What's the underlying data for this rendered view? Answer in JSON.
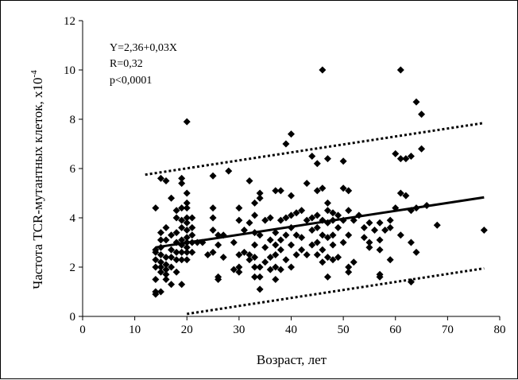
{
  "chart_data": {
    "type": "scatter",
    "title": "",
    "xlabel": "Возраст, лет",
    "ylabel_main": "Частота TCR-мутантных клеток, х10",
    "ylabel_exp": "-4",
    "xlim": [
      0,
      80
    ],
    "ylim": [
      0,
      12
    ],
    "xticks": [
      "0",
      "10",
      "20",
      "30",
      "40",
      "50",
      "60",
      "70",
      "80"
    ],
    "yticks": [
      "0",
      "2",
      "4",
      "6",
      "8",
      "10",
      "12"
    ],
    "grid": false,
    "legend": "none",
    "annotation": {
      "equation": "Y=2,36+0,03X",
      "r": "R=0,32",
      "p": "p<0,0001"
    },
    "regression": {
      "x": [
        14,
        77
      ],
      "y": [
        2.8,
        4.83
      ]
    },
    "upper_bound": {
      "x": [
        12,
        77
      ],
      "y": [
        5.75,
        7.85
      ]
    },
    "lower_bound": {
      "x": [
        20,
        77
      ],
      "y": [
        0.1,
        1.95
      ]
    },
    "marker": "diamond",
    "points": [
      [
        14,
        0.9
      ],
      [
        14,
        1.0
      ],
      [
        14,
        1.5
      ],
      [
        14,
        2.0
      ],
      [
        14,
        2.3
      ],
      [
        14,
        2.6
      ],
      [
        14,
        2.7
      ],
      [
        14,
        4.4
      ],
      [
        15,
        1.0
      ],
      [
        15,
        1.8
      ],
      [
        15,
        2.0
      ],
      [
        15,
        2.2
      ],
      [
        15,
        2.5
      ],
      [
        15,
        2.8
      ],
      [
        15,
        3.1
      ],
      [
        15,
        3.4
      ],
      [
        15,
        5.6
      ],
      [
        16,
        1.5
      ],
      [
        16,
        1.7
      ],
      [
        16,
        1.9
      ],
      [
        16,
        2.1
      ],
      [
        16,
        2.4
      ],
      [
        16,
        3.1
      ],
      [
        16,
        3.6
      ],
      [
        16,
        5.5
      ],
      [
        17,
        1.3
      ],
      [
        17,
        2.0
      ],
      [
        17,
        2.4
      ],
      [
        17,
        2.7
      ],
      [
        17,
        3.3
      ],
      [
        17,
        4.8
      ],
      [
        18,
        1.8
      ],
      [
        18,
        2.3
      ],
      [
        18,
        2.6
      ],
      [
        18,
        3.0
      ],
      [
        18,
        3.4
      ],
      [
        18,
        4.0
      ],
      [
        18,
        4.3
      ],
      [
        19,
        1.3
      ],
      [
        19,
        2.3
      ],
      [
        19,
        2.6
      ],
      [
        19,
        2.9
      ],
      [
        19,
        3.1
      ],
      [
        19,
        3.6
      ],
      [
        19,
        3.9
      ],
      [
        19,
        4.4
      ],
      [
        19,
        5.4
      ],
      [
        19,
        5.6
      ],
      [
        20,
        2.3
      ],
      [
        20,
        2.6
      ],
      [
        20,
        2.8
      ],
      [
        20,
        3.0
      ],
      [
        20,
        3.2
      ],
      [
        20,
        3.5
      ],
      [
        20,
        3.8
      ],
      [
        20,
        4.0
      ],
      [
        20,
        4.4
      ],
      [
        20,
        4.6
      ],
      [
        20,
        5.0
      ],
      [
        20,
        7.9
      ],
      [
        21,
        2.6
      ],
      [
        21,
        3.0
      ],
      [
        21,
        3.3
      ],
      [
        21,
        3.6
      ],
      [
        21,
        4.0
      ],
      [
        22,
        3.0
      ],
      [
        23,
        3.0
      ],
      [
        24,
        2.5
      ],
      [
        25,
        2.6
      ],
      [
        25,
        3.5
      ],
      [
        25,
        4.0
      ],
      [
        25,
        4.4
      ],
      [
        25,
        5.7
      ],
      [
        26,
        1.5
      ],
      [
        26,
        1.6
      ],
      [
        26,
        2.9
      ],
      [
        26,
        3.3
      ],
      [
        27,
        2.4
      ],
      [
        27,
        3.3
      ],
      [
        28,
        5.9
      ],
      [
        29,
        1.9
      ],
      [
        29,
        3.0
      ],
      [
        30,
        1.8
      ],
      [
        30,
        2.0
      ],
      [
        30,
        2.5
      ],
      [
        30,
        3.9
      ],
      [
        30,
        4.4
      ],
      [
        31,
        2.6
      ],
      [
        31,
        3.5
      ],
      [
        32,
        2.3
      ],
      [
        32,
        2.5
      ],
      [
        32,
        3.8
      ],
      [
        32,
        5.5
      ],
      [
        33,
        1.6
      ],
      [
        33,
        2.0
      ],
      [
        33,
        2.4
      ],
      [
        33,
        2.9
      ],
      [
        33,
        3.4
      ],
      [
        33,
        4.1
      ],
      [
        33,
        4.6
      ],
      [
        34,
        1.1
      ],
      [
        34,
        1.6
      ],
      [
        34,
        2.0
      ],
      [
        34,
        3.3
      ],
      [
        34,
        4.8
      ],
      [
        34,
        5.0
      ],
      [
        35,
        2.2
      ],
      [
        35,
        2.8
      ],
      [
        35,
        3.9
      ],
      [
        36,
        1.9
      ],
      [
        36,
        2.4
      ],
      [
        36,
        3.1
      ],
      [
        36,
        4.0
      ],
      [
        37,
        1.5
      ],
      [
        37,
        2.0
      ],
      [
        37,
        2.5
      ],
      [
        37,
        2.9
      ],
      [
        37,
        3.4
      ],
      [
        37,
        5.1
      ],
      [
        38,
        1.9
      ],
      [
        38,
        2.7
      ],
      [
        38,
        3.1
      ],
      [
        38,
        3.9
      ],
      [
        38,
        5.1
      ],
      [
        39,
        2.3
      ],
      [
        39,
        3.3
      ],
      [
        39,
        4.0
      ],
      [
        39,
        7.0
      ],
      [
        40,
        2.0
      ],
      [
        40,
        2.9
      ],
      [
        40,
        3.6
      ],
      [
        40,
        4.1
      ],
      [
        40,
        4.9
      ],
      [
        40,
        7.4
      ],
      [
        41,
        2.5
      ],
      [
        41,
        3.3
      ],
      [
        41,
        4.2
      ],
      [
        42,
        2.7
      ],
      [
        42,
        3.2
      ],
      [
        42,
        4.3
      ],
      [
        43,
        2.5
      ],
      [
        43,
        3.9
      ],
      [
        43,
        5.4
      ],
      [
        44,
        2.9
      ],
      [
        44,
        3.5
      ],
      [
        44,
        4.0
      ],
      [
        44,
        6.5
      ],
      [
        45,
        2.5
      ],
      [
        45,
        3.0
      ],
      [
        45,
        3.6
      ],
      [
        45,
        4.1
      ],
      [
        45,
        5.1
      ],
      [
        45,
        6.2
      ],
      [
        46,
        2.2
      ],
      [
        46,
        2.7
      ],
      [
        46,
        3.3
      ],
      [
        46,
        3.9
      ],
      [
        46,
        5.2
      ],
      [
        46,
        10.0
      ],
      [
        47,
        1.6
      ],
      [
        47,
        2.4
      ],
      [
        47,
        3.2
      ],
      [
        47,
        3.8
      ],
      [
        47,
        4.3
      ],
      [
        47,
        4.6
      ],
      [
        47,
        6.4
      ],
      [
        48,
        2.3
      ],
      [
        48,
        2.9
      ],
      [
        48,
        3.3
      ],
      [
        48,
        3.9
      ],
      [
        48,
        4.2
      ],
      [
        49,
        2.4
      ],
      [
        49,
        3.6
      ],
      [
        49,
        4.1
      ],
      [
        50,
        3.0
      ],
      [
        50,
        3.9
      ],
      [
        50,
        5.2
      ],
      [
        50,
        6.3
      ],
      [
        51,
        1.8
      ],
      [
        51,
        2.0
      ],
      [
        51,
        3.3
      ],
      [
        51,
        4.3
      ],
      [
        51,
        5.1
      ],
      [
        52,
        2.2
      ],
      [
        52,
        3.9
      ],
      [
        53,
        4.1
      ],
      [
        54,
        3.2
      ],
      [
        54,
        3.6
      ],
      [
        55,
        2.8
      ],
      [
        55,
        3.0
      ],
      [
        55,
        3.8
      ],
      [
        56,
        3.5
      ],
      [
        57,
        1.6
      ],
      [
        57,
        1.7
      ],
      [
        57,
        2.7
      ],
      [
        57,
        3.1
      ],
      [
        57,
        3.8
      ],
      [
        58,
        3.5
      ],
      [
        59,
        2.3
      ],
      [
        59,
        3.6
      ],
      [
        59,
        3.9
      ],
      [
        60,
        4.4
      ],
      [
        60,
        6.6
      ],
      [
        61,
        3.3
      ],
      [
        61,
        5.0
      ],
      [
        61,
        6.4
      ],
      [
        61,
        10.0
      ],
      [
        62,
        4.9
      ],
      [
        62,
        6.4
      ],
      [
        63,
        1.4
      ],
      [
        63,
        3.0
      ],
      [
        63,
        4.3
      ],
      [
        63,
        6.5
      ],
      [
        64,
        2.6
      ],
      [
        64,
        4.4
      ],
      [
        64,
        8.7
      ],
      [
        65,
        6.8
      ],
      [
        65,
        8.2
      ],
      [
        66,
        4.5
      ],
      [
        68,
        3.7
      ],
      [
        77,
        3.5
      ]
    ]
  }
}
